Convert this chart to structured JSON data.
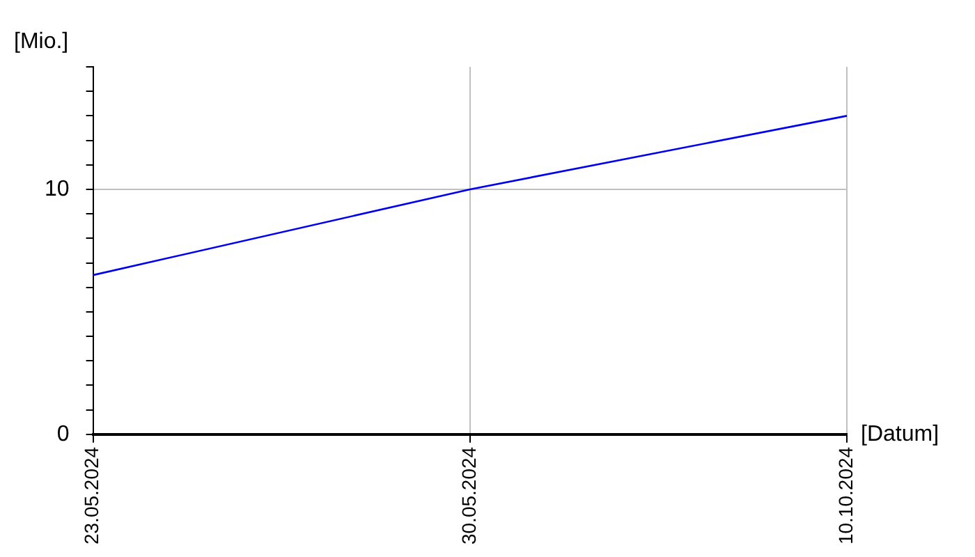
{
  "chart_data": {
    "type": "line",
    "xlabel": "[Datum]",
    "ylabel": "[Mio.]",
    "categories": [
      "23.05.2024",
      "30.05.2024",
      "10.10.2024"
    ],
    "series": [
      {
        "color": "#0000ee",
        "values": [
          6.5,
          10,
          13
        ]
      }
    ],
    "ylim": [
      0,
      15
    ],
    "yticks": [
      0,
      {
        "value": 1,
        "label": null
      },
      {
        "value": 2,
        "label": null
      },
      {
        "value": 3,
        "label": null
      },
      {
        "value": 4,
        "label": null
      },
      {
        "value": 5,
        "label": null
      },
      {
        "value": 6,
        "label": null
      },
      {
        "value": 7,
        "label": null
      },
      {
        "value": 8,
        "label": null
      },
      {
        "value": 9,
        "label": null
      },
      10,
      {
        "value": 11,
        "label": null
      },
      {
        "value": 12,
        "label": null
      },
      {
        "value": 13,
        "label": null
      },
      {
        "value": 14,
        "label": null
      },
      {
        "value": 15,
        "label": null
      }
    ],
    "grid": true,
    "legend": false
  }
}
